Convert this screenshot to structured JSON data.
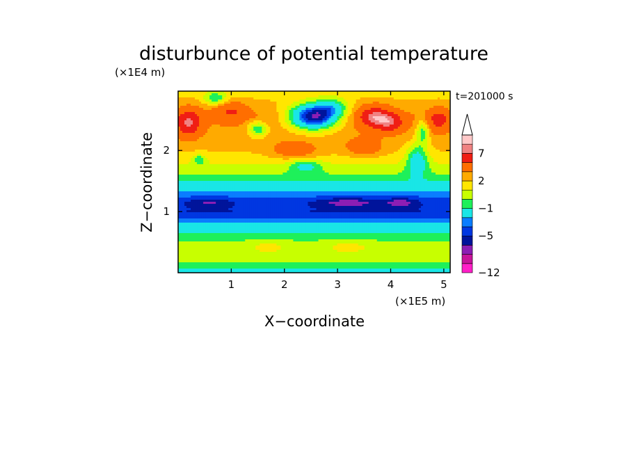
{
  "chart_data": {
    "type": "heatmap",
    "title": "disturbunce of potential temperature",
    "xlabel": "X−coordinate",
    "ylabel": "Z−coordinate",
    "x_unit": "(×1E5 m)",
    "y_unit": "(×1E4 m)",
    "time_label": "t=201000 s",
    "xlim": [
      0,
      5.12
    ],
    "ylim": [
      0,
      2.97
    ],
    "x_ticks": [
      {
        "value": 1,
        "label": "1"
      },
      {
        "value": 2,
        "label": "2"
      },
      {
        "value": 3,
        "label": "3"
      },
      {
        "value": 4,
        "label": "4"
      },
      {
        "value": 5,
        "label": "5"
      }
    ],
    "y_ticks": [
      {
        "value": 1,
        "label": "1"
      },
      {
        "value": 2,
        "label": "2"
      }
    ],
    "colorbar": {
      "levels": [
        -12,
        -10,
        -8,
        -6,
        -5,
        -4,
        -3,
        -1,
        0,
        1,
        2,
        3,
        5,
        7,
        8,
        9
      ],
      "colors": [
        "#ff1fc8",
        "#c8149b",
        "#8c1eb4",
        "#00149b",
        "#0037e1",
        "#0a7dff",
        "#19e6e6",
        "#1ef05a",
        "#c8ff00",
        "#ffe600",
        "#ffaa00",
        "#ff6e00",
        "#f01e14",
        "#f08282",
        "#ffc8c8",
        "#ffffff"
      ],
      "labeled": [
        {
          "value": -12,
          "label": "−12"
        },
        {
          "value": -5,
          "label": "−5"
        },
        {
          "value": -1,
          "label": "−1"
        },
        {
          "value": 2,
          "label": "2"
        },
        {
          "value": 7,
          "label": "7"
        }
      ],
      "extend": "max"
    },
    "profile": [
      {
        "z": 0.0,
        "value": -1.6
      },
      {
        "z": 0.15,
        "value": -0.2
      },
      {
        "z": 0.3,
        "value": 0.9
      },
      {
        "z": 0.45,
        "value": 0.4
      },
      {
        "z": 0.6,
        "value": -0.6
      },
      {
        "z": 0.75,
        "value": -2.2
      },
      {
        "z": 0.85,
        "value": -3.5
      },
      {
        "z": 1.0,
        "value": -5.0
      },
      {
        "z": 1.15,
        "value": -4.6
      },
      {
        "z": 1.3,
        "value": -3.4
      },
      {
        "z": 1.42,
        "value": -1.8
      },
      {
        "z": 1.55,
        "value": -0.4
      },
      {
        "z": 1.75,
        "value": 0.9
      },
      {
        "z": 1.95,
        "value": 1.9
      },
      {
        "z": 2.15,
        "value": 2.4
      },
      {
        "z": 2.35,
        "value": 2.8
      },
      {
        "z": 2.55,
        "value": 3.1
      },
      {
        "z": 2.75,
        "value": 2.3
      },
      {
        "z": 2.97,
        "value": 1.5
      }
    ],
    "anomalies": [
      {
        "x": 2.55,
        "z": 2.55,
        "amplitude": -9,
        "sx": 0.45,
        "sz": 0.2
      },
      {
        "x": 2.9,
        "z": 2.7,
        "amplitude": -3,
        "sx": 0.3,
        "sz": 0.15
      },
      {
        "x": 3.7,
        "z": 2.55,
        "amplitude": 4.5,
        "sx": 0.3,
        "sz": 0.18
      },
      {
        "x": 4.0,
        "z": 2.45,
        "amplitude": 3.5,
        "sx": 0.25,
        "sz": 0.15
      },
      {
        "x": 0.2,
        "z": 2.45,
        "amplitude": 4.5,
        "sx": 0.22,
        "sz": 0.22
      },
      {
        "x": 1.0,
        "z": 2.65,
        "amplitude": 2.5,
        "sx": 0.3,
        "sz": 0.15
      },
      {
        "x": 4.9,
        "z": 2.5,
        "amplitude": 3.0,
        "sx": 0.2,
        "sz": 0.18
      },
      {
        "x": 0.7,
        "z": 2.85,
        "amplitude": -3.0,
        "sx": 0.2,
        "sz": 0.1
      },
      {
        "x": 1.5,
        "z": 2.35,
        "amplitude": -3.5,
        "sx": 0.18,
        "sz": 0.12
      },
      {
        "x": 3.5,
        "z": 2.05,
        "amplitude": 2.0,
        "sx": 0.35,
        "sz": 0.15
      },
      {
        "x": 2.2,
        "z": 2.0,
        "amplitude": 2.0,
        "sx": 0.45,
        "sz": 0.15
      },
      {
        "x": 4.5,
        "z": 1.85,
        "amplitude": -3.5,
        "sx": 0.2,
        "sz": 0.25
      },
      {
        "x": 4.6,
        "z": 2.3,
        "amplitude": -3.0,
        "sx": 0.12,
        "sz": 0.2
      },
      {
        "x": 0.4,
        "z": 1.85,
        "amplitude": -2.5,
        "sx": 0.12,
        "sz": 0.08
      },
      {
        "x": 2.4,
        "z": 1.75,
        "amplitude": -2.5,
        "sx": 0.3,
        "sz": 0.1
      },
      {
        "x": 3.2,
        "z": 1.15,
        "amplitude": -2.0,
        "sx": 0.6,
        "sz": 0.08
      },
      {
        "x": 4.2,
        "z": 1.15,
        "amplitude": -2.0,
        "sx": 0.3,
        "sz": 0.08
      },
      {
        "x": 0.6,
        "z": 1.15,
        "amplitude": -1.5,
        "sx": 0.4,
        "sz": 0.08
      },
      {
        "x": 1.7,
        "z": 0.45,
        "amplitude": 0.8,
        "sx": 0.4,
        "sz": 0.1
      },
      {
        "x": 3.2,
        "z": 0.45,
        "amplitude": 0.8,
        "sx": 0.5,
        "sz": 0.1
      }
    ]
  }
}
